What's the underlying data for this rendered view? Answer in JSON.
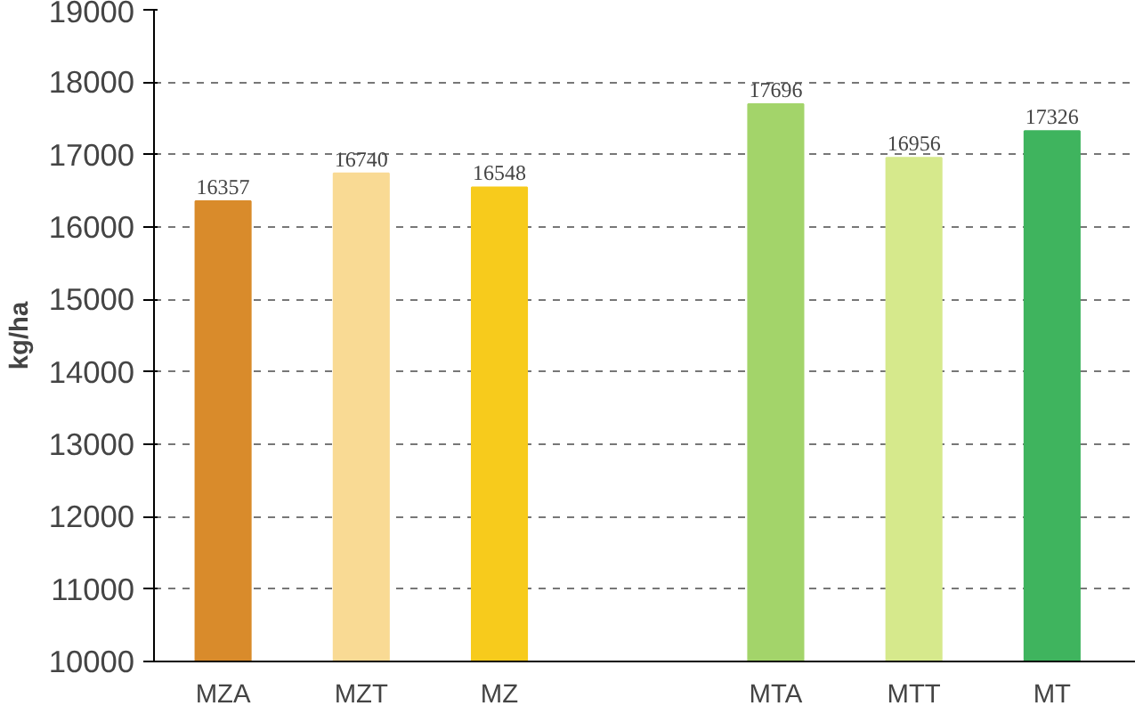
{
  "chart_data": {
    "type": "bar",
    "ylabel": "kg/ha",
    "categories": [
      "MZA",
      "MZT",
      "MZ",
      null,
      "MTA",
      "MTT",
      "MT"
    ],
    "values": [
      16357,
      16740,
      16548,
      null,
      17696,
      16956,
      17326
    ],
    "colors": [
      "#d98b2b",
      "#f9da94",
      "#f7cb1c",
      null,
      "#a3d46a",
      "#d6e98c",
      "#3fb45e"
    ],
    "ylim": [
      10000,
      19000
    ],
    "yticks": [
      10000,
      11000,
      12000,
      13000,
      14000,
      15000,
      16000,
      17000,
      18000,
      19000
    ],
    "grid": "y",
    "data_labels": true
  }
}
